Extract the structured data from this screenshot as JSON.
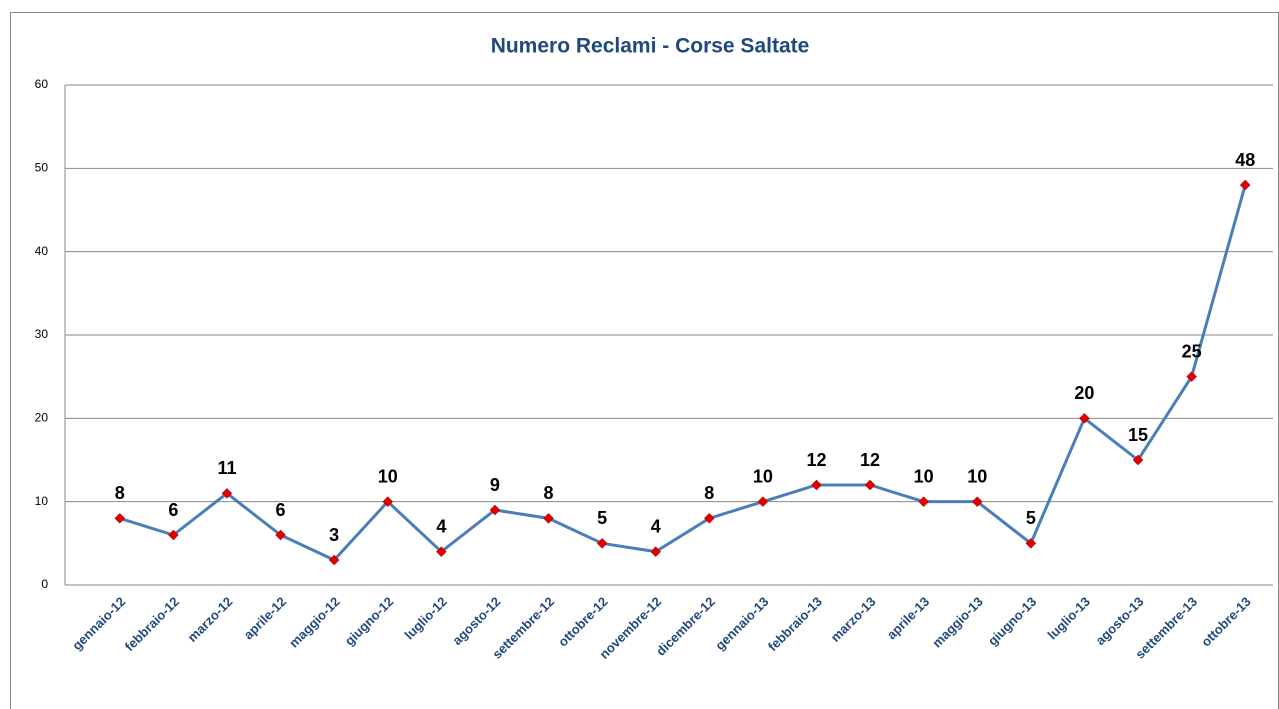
{
  "chart_data": {
    "type": "line",
    "title": "Numero Reclami - Corse Saltate",
    "categories": [
      "gennaio-12",
      "febbraio-12",
      "marzo-12",
      "aprile-12",
      "maggio-12",
      "giugno-12",
      "luglio-12",
      "agosto-12",
      "settembre-12",
      "ottobre-12",
      "novembre-12",
      "dicembre-12",
      "gennaio-13",
      "febbraio-13",
      "marzo-13",
      "aprile-13",
      "maggio-13",
      "giugno-13",
      "luglio-13",
      "agosto-13",
      "settembre-13",
      "ottobre-13"
    ],
    "series": [
      {
        "color": "#4a7ebb",
        "marker_color": "#e00000",
        "values": [
          8,
          6,
          11,
          6,
          3,
          10,
          4,
          9,
          8,
          5,
          4,
          8,
          10,
          12,
          12,
          10,
          10,
          5,
          20,
          15,
          25,
          48
        ]
      }
    ],
    "ylim": [
      0,
      60
    ],
    "yticks": [
      0,
      10,
      20,
      30,
      40,
      50,
      60
    ],
    "grid": true
  }
}
